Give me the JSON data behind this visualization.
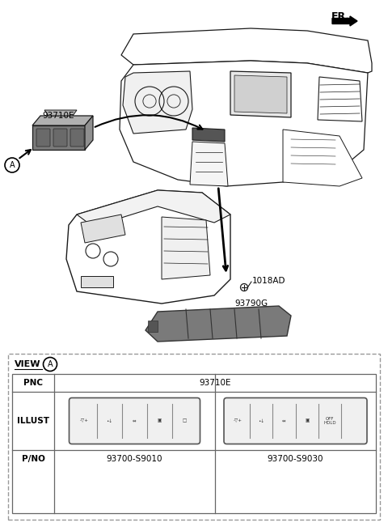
{
  "bg_color": "#ffffff",
  "fig_width": 4.8,
  "fig_height": 6.56,
  "dpi": 100,
  "fr_label": "FR.",
  "label_93710E": "93710E",
  "label_1018AD": "1018AD",
  "label_93790G": "93790G",
  "label_A": "A",
  "view_label": "VIEW",
  "pnc_label": "PNC",
  "pnc_value": "93710E",
  "illust_label": "ILLUST",
  "pno_label": "P/NO",
  "pno_left": "93700-S9010",
  "pno_right_value": "93700-S9030",
  "line_color": "#1a1a1a",
  "gray_part": "#7a7a7a",
  "gray_light": "#b0b0b0",
  "gray_dark": "#555555",
  "table_line": "#666666",
  "dashed_color": "#999999"
}
